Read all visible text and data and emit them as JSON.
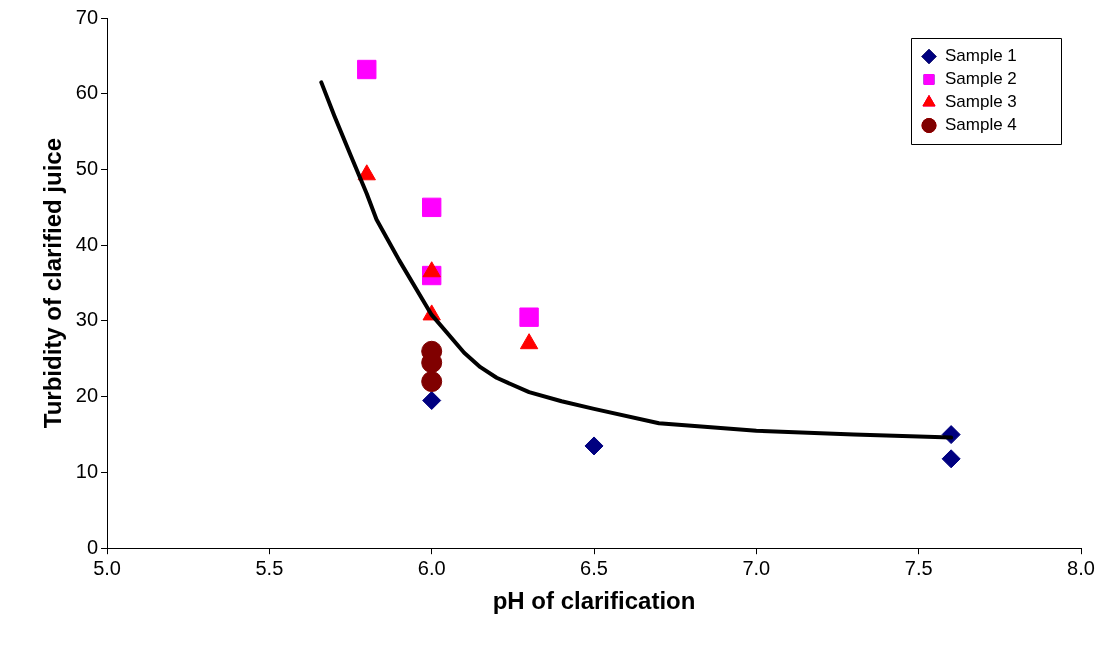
{
  "chart_data": {
    "type": "scatter",
    "xlabel": "pH of clarification",
    "ylabel": "Turbidity of clarified juice",
    "xlim": [
      5,
      8
    ],
    "xticks": [
      {
        "value": 5,
        "label": "5.0"
      },
      {
        "value": 5.5,
        "label": "5.5"
      },
      {
        "value": 6,
        "label": "6.0"
      },
      {
        "value": 6.5,
        "label": "6.5"
      },
      {
        "value": 7,
        "label": "7.0"
      },
      {
        "value": 7.5,
        "label": "7.5"
      },
      {
        "value": 8,
        "label": "8.0"
      }
    ],
    "ylim": [
      0,
      70
    ],
    "yticks": [
      0,
      10,
      20,
      30,
      40,
      50,
      60,
      70
    ],
    "grid": false,
    "legend": "top right",
    "series": [
      {
        "name": "Sample 1",
        "color": "#000080",
        "marker": "diamond",
        "x": [
          6.0,
          6.5,
          7.6,
          7.6
        ],
        "values": [
          19.5,
          13.5,
          15,
          11.8
        ]
      },
      {
        "name": "Sample 2",
        "color": "#ff00ff",
        "marker": "square",
        "x": [
          5.8,
          6.0,
          6.0,
          6.3
        ],
        "values": [
          63.2,
          45,
          36,
          30.5
        ]
      },
      {
        "name": "Sample 3",
        "color": "#ff0000",
        "marker": "triangle",
        "x": [
          5.8,
          6.0,
          6.0,
          6.3
        ],
        "values": [
          49.3,
          36.5,
          30.8,
          27
        ]
      },
      {
        "name": "Sample 4",
        "color": "#800000",
        "marker": "circle",
        "x": [
          6.0,
          6.0,
          6.0
        ],
        "values": [
          26,
          24.5,
          22
        ]
      },
      {
        "type": "line",
        "color": "#000000",
        "marker": "none",
        "line_style": "solid",
        "x": [
          5.66,
          5.7,
          5.75,
          5.8,
          5.83,
          5.9,
          6.0,
          6.1,
          6.15,
          6.2,
          6.3,
          6.4,
          6.5,
          6.7,
          7.0,
          7.3,
          7.6
        ],
        "values": [
          61.5,
          57.1,
          51.9,
          46.8,
          43.4,
          38,
          30.8,
          25.8,
          23.9,
          22.5,
          20.6,
          19.4,
          18.4,
          16.5,
          15.5,
          15,
          14.6
        ]
      }
    ]
  }
}
